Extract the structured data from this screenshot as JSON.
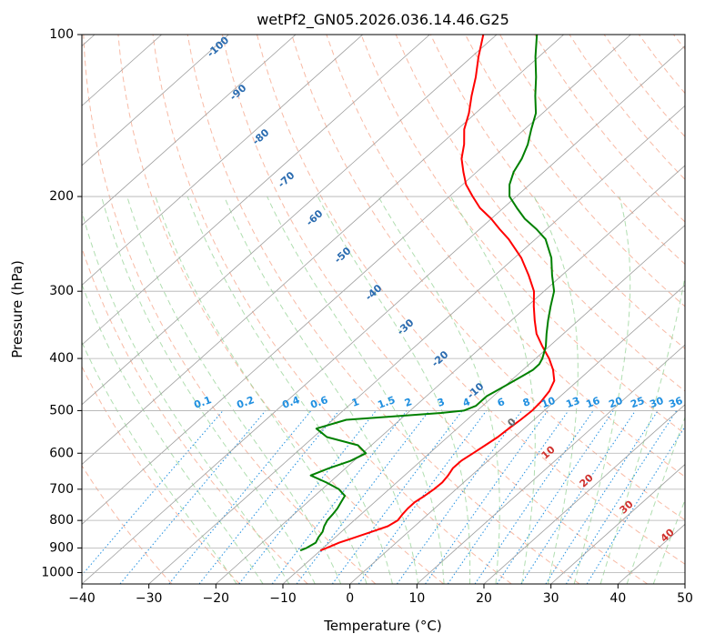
{
  "chart_data": {
    "type": "line",
    "subtype": "skew-T log-P",
    "title": "wetPf2_GN05.2026.036.14.46.G25",
    "xlabel": "Temperature (°C)",
    "ylabel": "Pressure (hPa)",
    "xlim": [
      -40,
      50
    ],
    "ylim": [
      1050,
      100
    ],
    "y_scale": "log",
    "skew_degrees_per_decade": 90,
    "grid": true,
    "x_ticks": [
      -40,
      -30,
      -20,
      -10,
      0,
      10,
      20,
      30,
      40,
      50
    ],
    "y_ticks": [
      1000,
      900,
      800,
      700,
      600,
      500,
      400,
      300,
      200,
      100
    ],
    "series": [
      {
        "color": "#ff0000",
        "y": [
          910,
          900,
          880,
          860,
          840,
          820,
          800,
          780,
          760,
          740,
          720,
          700,
          680,
          660,
          640,
          620,
          600,
          580,
          560,
          540,
          520,
          500,
          480,
          460,
          440,
          420,
          400,
          380,
          360,
          340,
          320,
          300,
          280,
          260,
          240,
          230,
          220,
          210,
          200,
          190,
          180,
          170,
          160,
          150,
          140,
          130,
          120,
          110,
          100
        ],
        "x": [
          -10,
          -9.5,
          -8.5,
          -7,
          -5.5,
          -4,
          -3.5,
          -3.8,
          -4,
          -4,
          -3.6,
          -3.3,
          -3.2,
          -3.5,
          -4,
          -4,
          -3.5,
          -3,
          -2.5,
          -2.3,
          -2,
          -1.8,
          -2,
          -2.5,
          -3.5,
          -5.5,
          -8,
          -11,
          -14,
          -16.5,
          -19,
          -21.5,
          -25,
          -29,
          -34,
          -37,
          -40,
          -43.5,
          -46.5,
          -49.5,
          -52,
          -54.5,
          -56.5,
          -59,
          -61,
          -63.5,
          -66,
          -69,
          -72
        ]
      },
      {
        "color": "#008000",
        "y": [
          910,
          900,
          880,
          860,
          840,
          820,
          800,
          780,
          760,
          740,
          720,
          700,
          680,
          660,
          640,
          620,
          600,
          580,
          560,
          540,
          520,
          505,
          500,
          490,
          480,
          470,
          460,
          450,
          440,
          430,
          420,
          410,
          400,
          380,
          360,
          340,
          320,
          300,
          280,
          260,
          240,
          230,
          220,
          210,
          200,
          190,
          180,
          170,
          160,
          150,
          140,
          130,
          120,
          110,
          100
        ],
        "x": [
          -13,
          -12.5,
          -12,
          -12.5,
          -12.8,
          -13.5,
          -14,
          -14.2,
          -14.5,
          -15,
          -15.5,
          -17.5,
          -20.5,
          -24,
          -22.5,
          -20.5,
          -19.5,
          -22,
          -28,
          -31,
          -28,
          -15,
          -12,
          -11,
          -11,
          -11,
          -10.5,
          -10,
          -9.5,
          -9,
          -8.5,
          -8.5,
          -9,
          -10.5,
          -12.5,
          -14.5,
          -16.5,
          -18.5,
          -21.5,
          -24.5,
          -28.5,
          -31.5,
          -35,
          -38,
          -41,
          -43,
          -44.5,
          -45.5,
          -47,
          -49,
          -51,
          -54,
          -57,
          -60.5,
          -64
        ]
      }
    ],
    "isotherm_labels": [
      "-100",
      "-90",
      "-80",
      "-70",
      "-60",
      "-50",
      "-40",
      "-30",
      "-20",
      "-10",
      "0",
      "10",
      "20",
      "30",
      "40"
    ],
    "mixing_ratio_labels": [
      "0.1",
      "0.2",
      "0.4",
      "0.6",
      "1",
      "1.5",
      "2",
      "3",
      "4",
      "6",
      "8",
      "10",
      "13",
      "16",
      "20",
      "25",
      "30",
      "36"
    ]
  }
}
